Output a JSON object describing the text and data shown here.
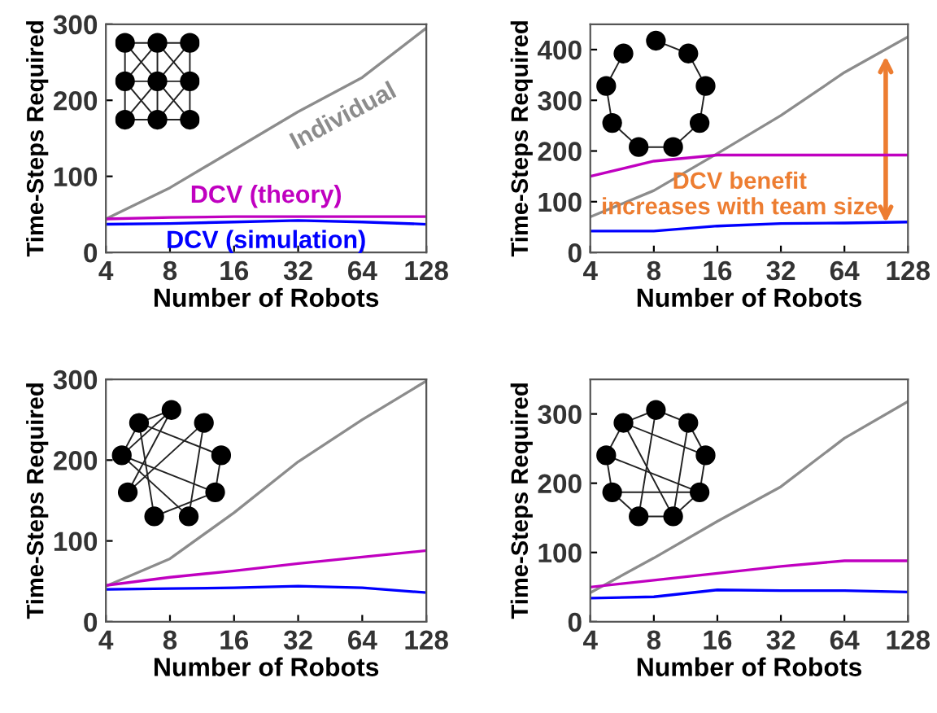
{
  "chart_data": [
    {
      "type": "line",
      "xlabel": "Number of Robots",
      "ylabel": "Time-Steps Required",
      "x": [
        4,
        8,
        16,
        32,
        64,
        128
      ],
      "log": "x",
      "xlim": [
        4,
        128
      ],
      "xticks": [
        4,
        8,
        16,
        32,
        64,
        128
      ],
      "ylim": [
        0,
        300
      ],
      "yticks": [
        0,
        100,
        200,
        300
      ],
      "grid": false,
      "legend": false,
      "series": [
        {
          "name": "Individual",
          "color": "#8c8c8c",
          "values": [
            44,
            85,
            135,
            185,
            230,
            295
          ]
        },
        {
          "name": "DCV (theory)",
          "color": "#c000c0",
          "values": [
            44,
            46,
            47,
            47,
            47,
            47
          ]
        },
        {
          "name": "DCV (simulation)",
          "color": "#0000ff",
          "values": [
            37,
            38,
            40,
            42,
            40,
            37
          ]
        }
      ]
    },
    {
      "type": "line",
      "xlabel": "Number of Robots",
      "ylabel": "Time-Steps Required",
      "x": [
        4,
        8,
        16,
        32,
        64,
        128
      ],
      "log": "x",
      "xlim": [
        4,
        128
      ],
      "xticks": [
        4,
        8,
        16,
        32,
        64,
        128
      ],
      "ylim": [
        0,
        450
      ],
      "yticks": [
        0,
        100,
        200,
        300,
        400
      ],
      "grid": false,
      "legend": false,
      "annotations": [
        "DCV benefit\nincreases with team size"
      ],
      "series": [
        {
          "color": "#8c8c8c",
          "values": [
            70,
            122,
            195,
            270,
            355,
            425
          ]
        },
        {
          "color": "#c000c0",
          "values": [
            150,
            180,
            192,
            192,
            192,
            192
          ]
        },
        {
          "color": "#0000ff",
          "values": [
            42,
            42,
            52,
            57,
            58,
            60
          ]
        }
      ]
    },
    {
      "type": "line",
      "xlabel": "Number of Robots",
      "ylabel": "Time-Steps Required",
      "x": [
        4,
        8,
        16,
        32,
        64,
        128
      ],
      "log": "x",
      "xlim": [
        4,
        128
      ],
      "xticks": [
        4,
        8,
        16,
        32,
        64,
        128
      ],
      "ylim": [
        0,
        300
      ],
      "yticks": [
        0,
        100,
        200,
        300
      ],
      "grid": false,
      "legend": false,
      "series": [
        {
          "color": "#8c8c8c",
          "values": [
            44,
            78,
            135,
            198,
            250,
            298
          ]
        },
        {
          "color": "#c000c0",
          "values": [
            45,
            55,
            63,
            72,
            80,
            88
          ]
        },
        {
          "color": "#0000ff",
          "values": [
            40,
            41,
            42,
            44,
            42,
            36
          ]
        }
      ]
    },
    {
      "type": "line",
      "xlabel": "Number of Robots",
      "ylabel": "Time-Steps Required",
      "x": [
        4,
        8,
        16,
        32,
        64,
        128
      ],
      "log": "x",
      "xlim": [
        4,
        128
      ],
      "xticks": [
        4,
        8,
        16,
        32,
        64,
        128
      ],
      "ylim": [
        0,
        350
      ],
      "yticks": [
        0,
        100,
        200,
        300
      ],
      "grid": false,
      "legend": false,
      "series": [
        {
          "color": "#8c8c8c",
          "values": [
            42,
            92,
            145,
            195,
            265,
            318
          ]
        },
        {
          "color": "#c000c0",
          "values": [
            50,
            60,
            70,
            80,
            88,
            88
          ]
        },
        {
          "color": "#0000ff",
          "values": [
            34,
            36,
            46,
            45,
            45,
            43
          ]
        }
      ]
    }
  ]
}
